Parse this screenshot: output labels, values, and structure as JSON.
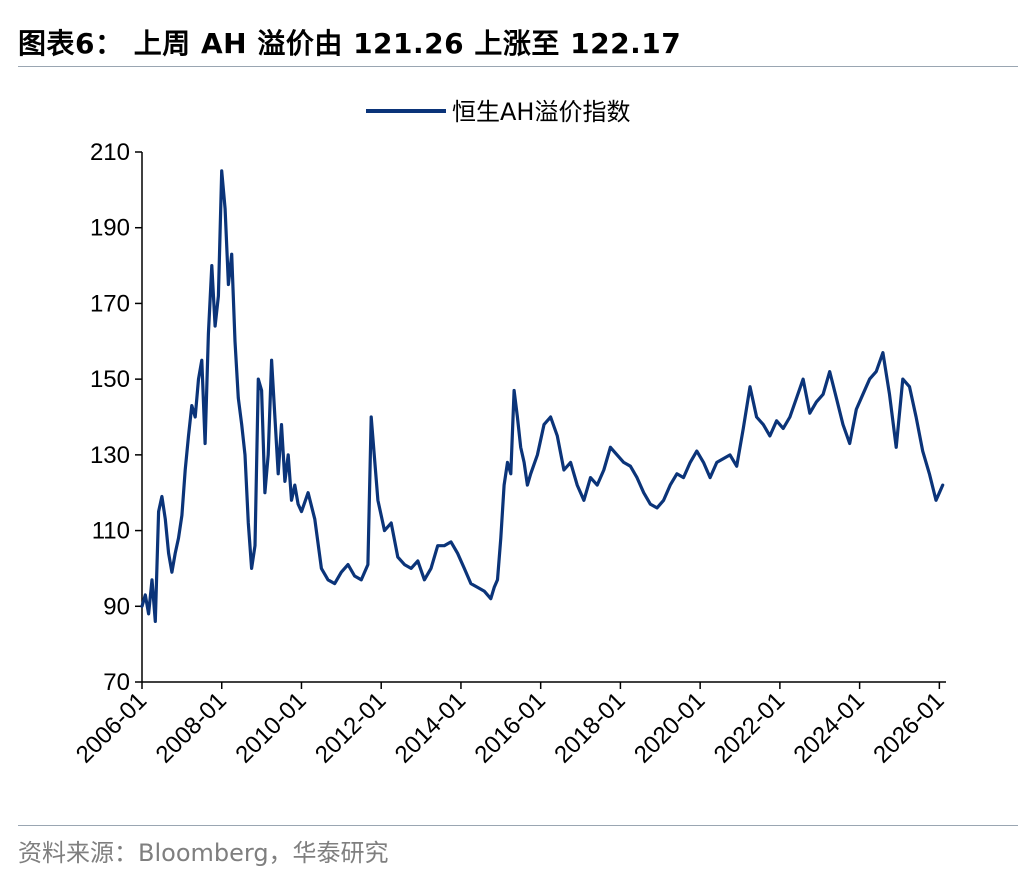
{
  "figure": {
    "title": "图表6： 上周 AH 溢价由 121.26 上涨至 122.17",
    "source": "资料来源：Bloomberg，华泰研究"
  },
  "chart_data": {
    "type": "line",
    "title": "",
    "xlabel": "",
    "ylabel": "",
    "ylim": [
      70,
      210
    ],
    "yticks": [
      70,
      90,
      110,
      130,
      150,
      170,
      190,
      210
    ],
    "xlim": [
      "2006-01",
      "2026-03"
    ],
    "xticks": [
      "2006-01",
      "2008-01",
      "2010-01",
      "2012-01",
      "2014-01",
      "2016-01",
      "2018-01",
      "2020-01",
      "2022-01",
      "2024-01",
      "2026-01"
    ],
    "grid": false,
    "legend_position": "top-center",
    "series": [
      {
        "name": "恒生AH溢价指数",
        "color": "#0b3479",
        "x": [
          "2006-01",
          "2006-02",
          "2006-03",
          "2006-04",
          "2006-05",
          "2006-06",
          "2006-07",
          "2006-08",
          "2006-09",
          "2006-10",
          "2006-11",
          "2006-12",
          "2007-01",
          "2007-02",
          "2007-03",
          "2007-04",
          "2007-05",
          "2007-06",
          "2007-07",
          "2007-08",
          "2007-09",
          "2007-10",
          "2007-11",
          "2007-12",
          "2008-01",
          "2008-02",
          "2008-03",
          "2008-04",
          "2008-05",
          "2008-06",
          "2008-07",
          "2008-08",
          "2008-09",
          "2008-10",
          "2008-11",
          "2008-12",
          "2009-01",
          "2009-02",
          "2009-03",
          "2009-04",
          "2009-05",
          "2009-06",
          "2009-07",
          "2009-08",
          "2009-09",
          "2009-10",
          "2009-11",
          "2009-12",
          "2010-01",
          "2010-03",
          "2010-05",
          "2010-07",
          "2010-09",
          "2010-11",
          "2011-01",
          "2011-03",
          "2011-05",
          "2011-07",
          "2011-09",
          "2011-10",
          "2011-12",
          "2012-02",
          "2012-04",
          "2012-06",
          "2012-08",
          "2012-10",
          "2012-12",
          "2013-02",
          "2013-04",
          "2013-06",
          "2013-08",
          "2013-10",
          "2013-12",
          "2014-02",
          "2014-04",
          "2014-06",
          "2014-08",
          "2014-10",
          "2014-11",
          "2014-12",
          "2015-01",
          "2015-02",
          "2015-03",
          "2015-04",
          "2015-05",
          "2015-06",
          "2015-07",
          "2015-08",
          "2015-09",
          "2015-10",
          "2015-12",
          "2016-02",
          "2016-04",
          "2016-06",
          "2016-08",
          "2016-10",
          "2016-12",
          "2017-02",
          "2017-04",
          "2017-06",
          "2017-08",
          "2017-10",
          "2017-12",
          "2018-02",
          "2018-04",
          "2018-06",
          "2018-08",
          "2018-10",
          "2018-12",
          "2019-02",
          "2019-04",
          "2019-06",
          "2019-08",
          "2019-10",
          "2019-12",
          "2020-02",
          "2020-04",
          "2020-06",
          "2020-08",
          "2020-10",
          "2020-12",
          "2021-02",
          "2021-04",
          "2021-06",
          "2021-08",
          "2021-10",
          "2021-12",
          "2022-02",
          "2022-04",
          "2022-06",
          "2022-08",
          "2022-10",
          "2022-12",
          "2023-02",
          "2023-04",
          "2023-06",
          "2023-08",
          "2023-10",
          "2023-12",
          "2024-02",
          "2024-04",
          "2024-06",
          "2024-08",
          "2024-10",
          "2024-12",
          "2025-02",
          "2025-04",
          "2025-06",
          "2025-08",
          "2025-10",
          "2025-12",
          "2026-01",
          "2026-02"
        ],
        "values": [
          90,
          93,
          88,
          97,
          86,
          115,
          119,
          113,
          104,
          99,
          104,
          108,
          114,
          126,
          135,
          143,
          140,
          150,
          155,
          133,
          162,
          180,
          164,
          172,
          205,
          195,
          175,
          183,
          160,
          145,
          138,
          130,
          112,
          100,
          106,
          150,
          147,
          120,
          130,
          155,
          140,
          125,
          138,
          123,
          130,
          118,
          122,
          117,
          115,
          120,
          113,
          100,
          97,
          96,
          99,
          101,
          98,
          97,
          101,
          140,
          118,
          110,
          112,
          103,
          101,
          100,
          102,
          97,
          100,
          106,
          106,
          107,
          104,
          100,
          96,
          95,
          94,
          92,
          95,
          97,
          108,
          122,
          128,
          125,
          147,
          140,
          132,
          128,
          122,
          125,
          130,
          138,
          140,
          135,
          126,
          128,
          122,
          118,
          124,
          122,
          126,
          132,
          130,
          128,
          127,
          124,
          120,
          117,
          116,
          118,
          122,
          125,
          124,
          128,
          131,
          128,
          124,
          128,
          129,
          130,
          127,
          137,
          148,
          140,
          138,
          135,
          139,
          137,
          140,
          145,
          150,
          141,
          144,
          146,
          152,
          145,
          138,
          133,
          142,
          146,
          150,
          152,
          157,
          146,
          132,
          150,
          148,
          140,
          131,
          125,
          118,
          120,
          122
        ]
      }
    ]
  }
}
